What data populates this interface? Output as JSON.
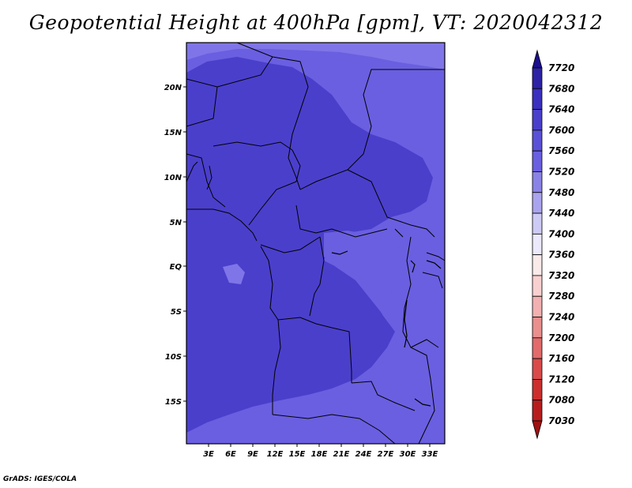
{
  "title": "Geopotential Height at 400hPa [gpm], VT: 2020042312",
  "credit": "GrADS: IGES/COLA",
  "map": {
    "lat_labels": [
      "20N",
      "15N",
      "10N",
      "5N",
      "EQ",
      "5S",
      "10S",
      "15S"
    ],
    "lon_labels": [
      "3E",
      "6E",
      "9E",
      "12E",
      "15E",
      "18E",
      "21E",
      "24E",
      "27E",
      "30E",
      "33E"
    ],
    "colors": {
      "band_7600_7640": "#4a3fcb",
      "band_7560_7600": "#6a5fe0",
      "band_7520_7560": "#7f75e8",
      "border": "#000000"
    }
  },
  "colorbar": {
    "levels": [
      "7720",
      "7680",
      "7640",
      "7600",
      "7560",
      "7520",
      "7480",
      "7440",
      "7400",
      "7360",
      "7320",
      "7280",
      "7240",
      "7200",
      "7160",
      "7120",
      "7080",
      "7030"
    ],
    "colors": [
      "#1c0f8c",
      "#2d22a6",
      "#3a2fbf",
      "#4a3fcb",
      "#5a50d8",
      "#6a5fe0",
      "#8a82e6",
      "#aaa4ee",
      "#cdcaf5",
      "#ebe9fb",
      "#fbeaea",
      "#f8d0d0",
      "#f2b0b0",
      "#ea8e8e",
      "#e26a6a",
      "#da4a4a",
      "#cc2e2e",
      "#b81d1d",
      "#a01212"
    ]
  }
}
